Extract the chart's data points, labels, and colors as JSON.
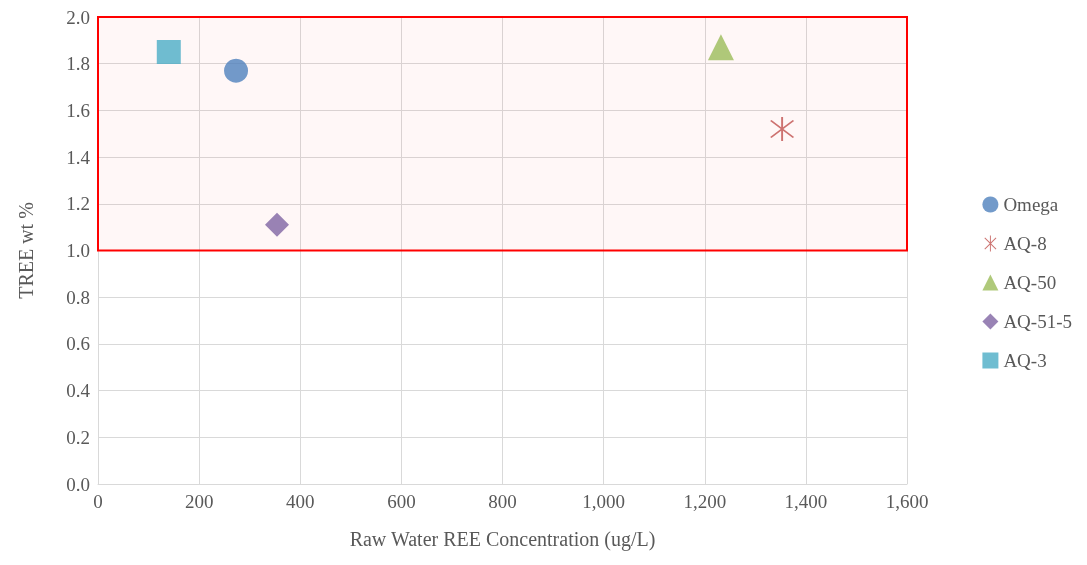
{
  "chart_data": {
    "type": "scatter",
    "xlabel": "Raw Water REE Concentration (ug/L)",
    "ylabel": "TREE wt %",
    "series": [
      {
        "name": "Omega",
        "color": "#4f81bd",
        "marker": "circle",
        "x": [
          273
        ],
        "values": [
          1.77
        ]
      },
      {
        "name": "AQ-8",
        "color": "#c0504d",
        "marker": "cross",
        "x": [
          1353
        ],
        "values": [
          1.52
        ]
      },
      {
        "name": "AQ-50",
        "color": "#9bbb59",
        "marker": "triangle",
        "x": [
          1232
        ],
        "values": [
          1.87
        ]
      },
      {
        "name": "AQ-51-5",
        "color": "#8064a2",
        "marker": "diamond",
        "x": [
          354
        ],
        "values": [
          1.11
        ]
      },
      {
        "name": "AQ-3",
        "color": "#4bacc6",
        "marker": "square",
        "x": [
          140
        ],
        "values": [
          1.85
        ]
      }
    ],
    "xlim": [
      0,
      1600
    ],
    "xticks": [
      0,
      {
        "value": 200,
        "label": "200"
      },
      {
        "value": 400,
        "label": "400"
      },
      {
        "value": 600,
        "label": "600"
      },
      {
        "value": 800,
        "label": "800"
      },
      {
        "value": 1000,
        "label": "1,000"
      },
      {
        "value": 1200,
        "label": "1,200"
      },
      {
        "value": 1400,
        "label": "1,400"
      },
      {
        "value": 1600,
        "label": "1,600"
      }
    ],
    "ylim": [
      0,
      2
    ],
    "yticks": [
      {
        "value": 0,
        "label": "0.0"
      },
      {
        "value": 0.2,
        "label": "0.2"
      },
      {
        "value": 0.4,
        "label": "0.4"
      },
      {
        "value": 0.6,
        "label": "0.6"
      },
      {
        "value": 0.8,
        "label": "0.8"
      },
      {
        "value": 1,
        "label": "1.0"
      },
      {
        "value": 1.2,
        "label": "1.2"
      },
      {
        "value": 1.4,
        "label": "1.4"
      },
      {
        "value": 1.6,
        "label": "1.6"
      },
      {
        "value": 1.8,
        "label": "1.8"
      },
      {
        "value": 2,
        "label": "2.0"
      }
    ],
    "bands": [
      {
        "axis": "y",
        "from": 1.0,
        "to": 2.0,
        "color": "#ff0000"
      }
    ],
    "grid": true,
    "legend": "right"
  }
}
